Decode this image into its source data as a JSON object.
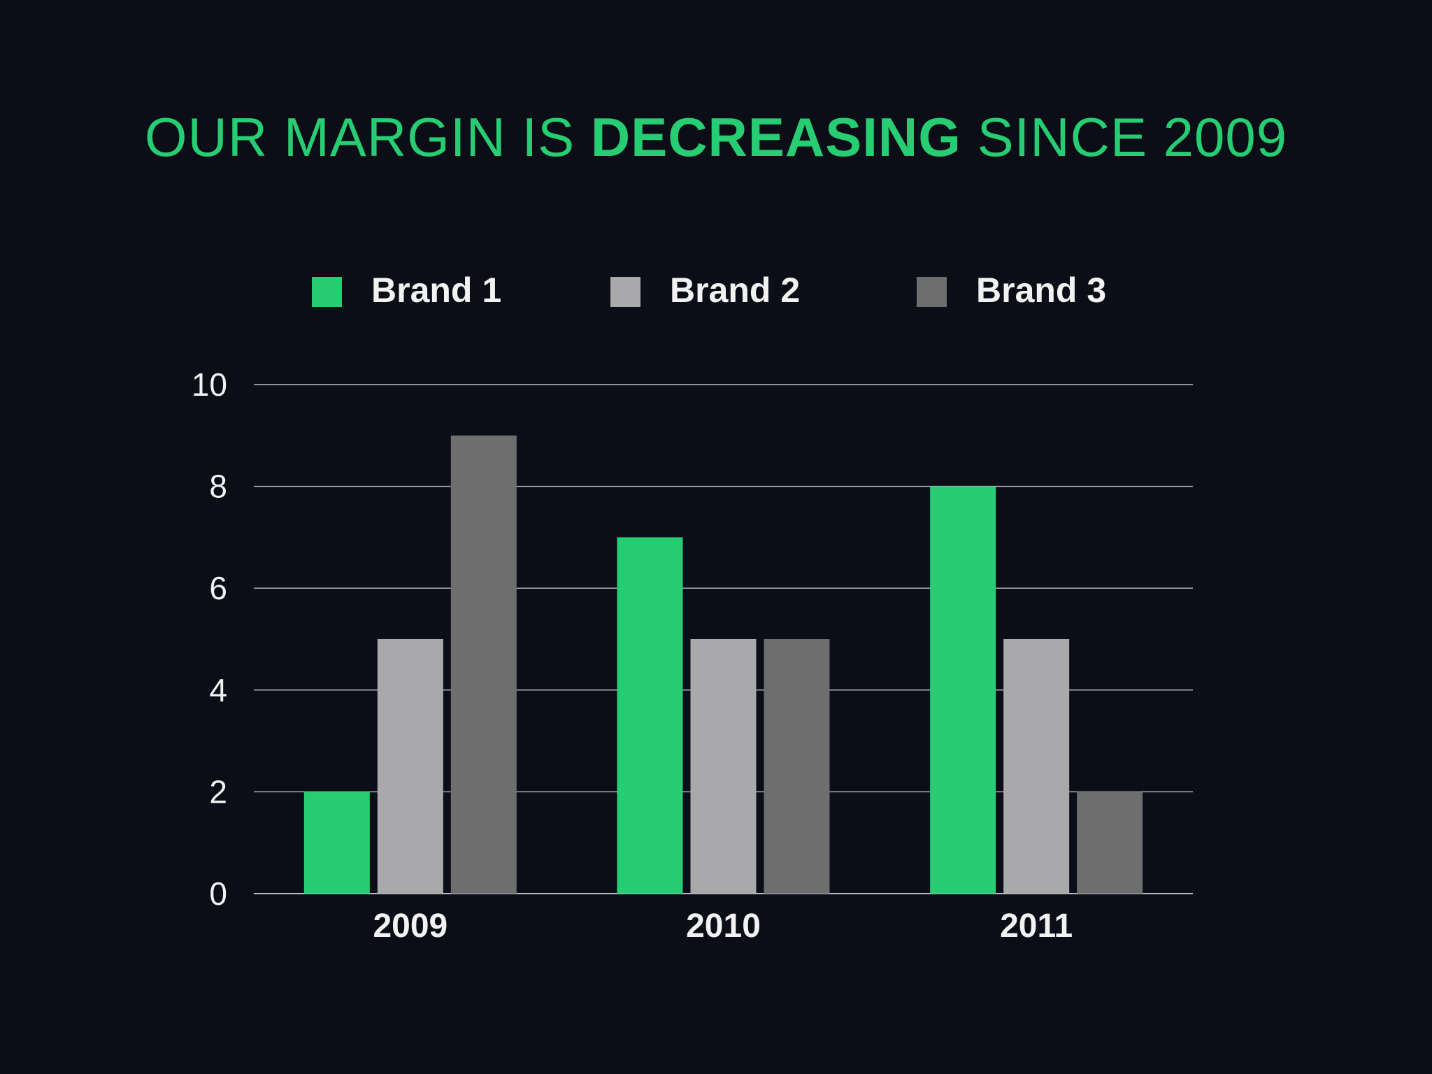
{
  "title": {
    "prefix": "OUR MARGIN IS ",
    "emphasis": "DECREASING",
    "suffix": " SINCE 2009"
  },
  "colors": {
    "background": "#0b0d17",
    "accent": "#27cd72",
    "brand1": "#27cd72",
    "brand2": "#a9a9ab",
    "brand3": "#6e6e6e",
    "gridline": "#b9bcc4",
    "text": "#f2f2f2"
  },
  "chart_data": {
    "type": "bar",
    "title": "OUR MARGIN IS DECREASING SINCE 2009",
    "categories": [
      "2009",
      "2010",
      "2011"
    ],
    "series": [
      {
        "name": "Brand 1",
        "values": [
          2,
          7,
          8
        ],
        "color": "#27cd72"
      },
      {
        "name": "Brand 2",
        "values": [
          5,
          5,
          5
        ],
        "color": "#a9a9ab"
      },
      {
        "name": "Brand 3",
        "values": [
          9,
          5,
          2
        ],
        "color": "#6e6e6e"
      }
    ],
    "xlabel": "",
    "ylabel": "",
    "ylim": [
      0,
      10
    ],
    "yticks": [
      "0",
      "2",
      "4",
      "6",
      "8",
      "10"
    ],
    "grid": true,
    "legend_position": "top"
  }
}
